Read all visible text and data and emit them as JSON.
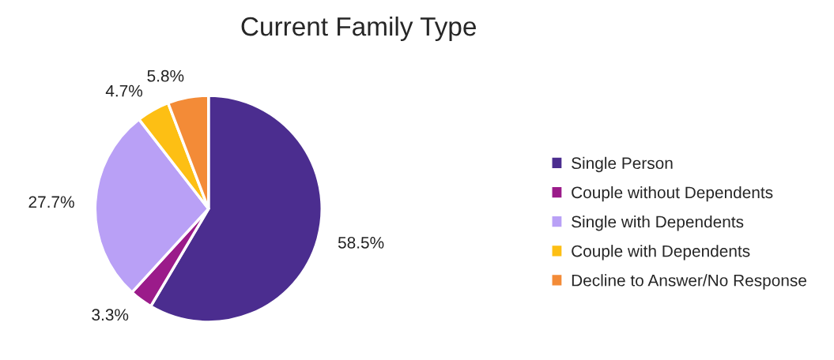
{
  "chart_data": {
    "type": "pie",
    "title": "Current Family Type",
    "categories": [
      "Single Person",
      "Couple without Dependents",
      "Single with Dependents",
      "Couple with Dependents",
      "Decline to Answer/No Response"
    ],
    "values": [
      58.5,
      3.3,
      27.7,
      4.7,
      5.8
    ],
    "colors": [
      "#4b2d8f",
      "#9b1b8a",
      "#b9a0f6",
      "#fdbf14",
      "#f38b37"
    ],
    "value_labels": [
      "58.5%",
      "3.3%",
      "27.7%",
      "4.7%",
      "5.8%"
    ],
    "legend": "right"
  }
}
